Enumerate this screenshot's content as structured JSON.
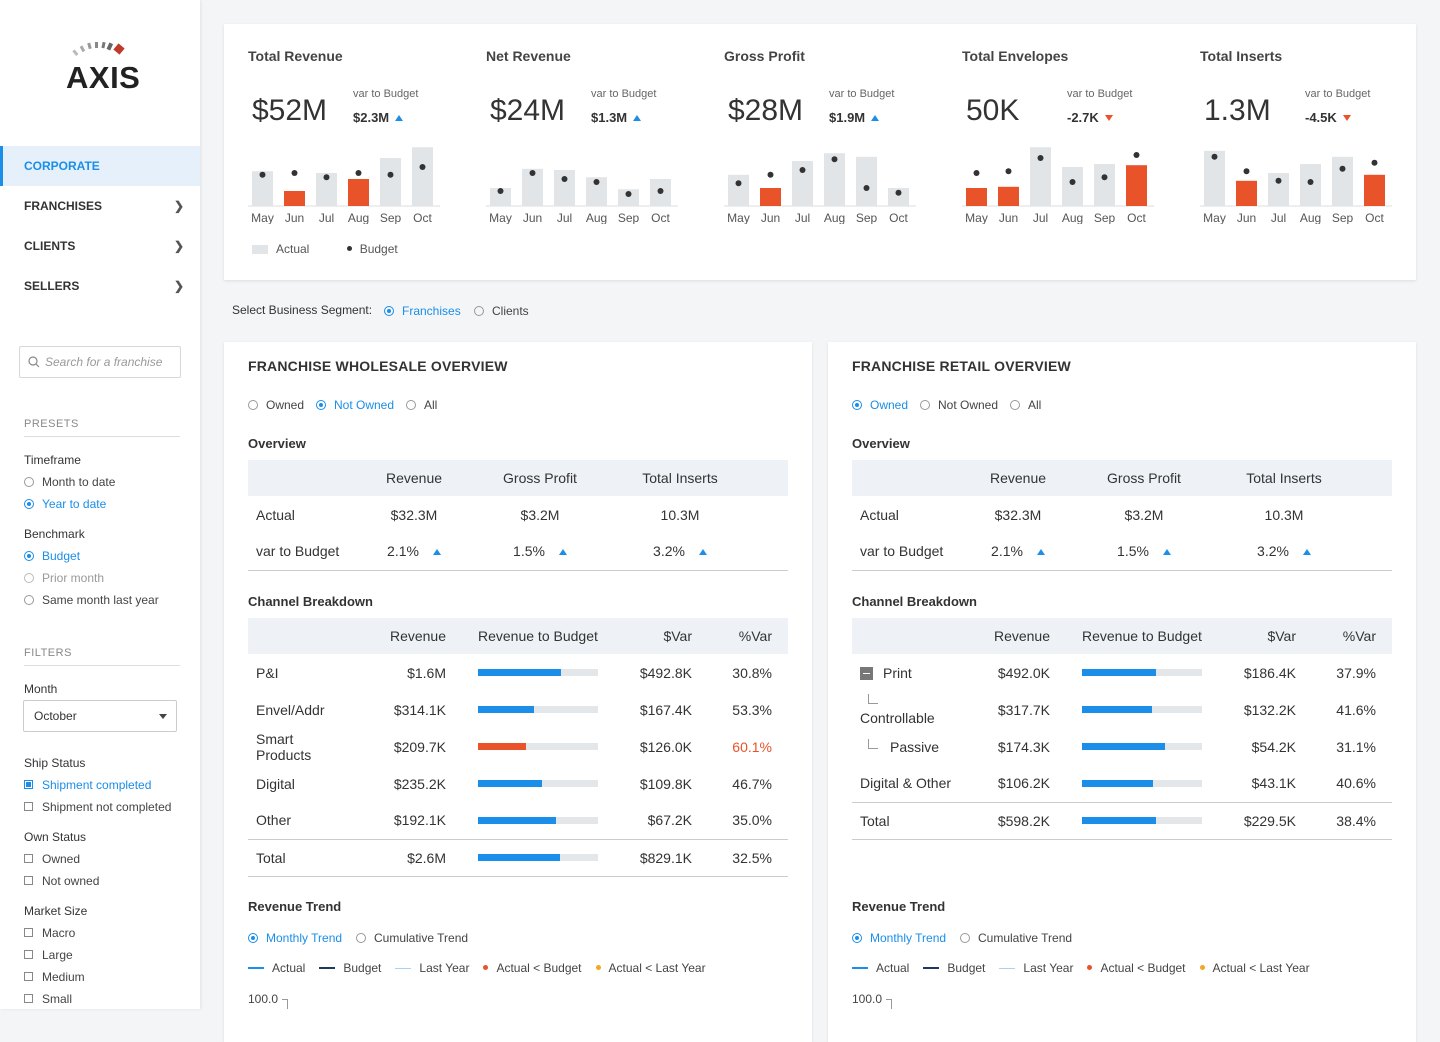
{
  "sidebar": {
    "logo_text": "AXIS",
    "nav": [
      {
        "label": "CORPORATE",
        "active": true
      },
      {
        "label": "FRANCHISES"
      },
      {
        "label": "CLIENTS"
      },
      {
        "label": "SELLERS"
      }
    ],
    "search_placeholder": "Search for a franchise",
    "presets_header": "PRESETS",
    "timeframe_label": "Timeframe",
    "timeframe_options": [
      "Month to date",
      "Year to date"
    ],
    "timeframe_selected": "Year to date",
    "benchmark_label": "Benchmark",
    "benchmark_options": [
      "Budget",
      "Prior month",
      "Same month last year"
    ],
    "benchmark_selected": "Budget",
    "filters_header": "FILTERS",
    "month_label": "Month",
    "month_value": "October",
    "ship_status_label": "Ship Status",
    "ship_options": [
      "Shipment completed",
      "Shipment not completed"
    ],
    "own_status_label": "Own Status",
    "own_options": [
      "Owned",
      "Not owned"
    ],
    "market_size_label": "Market Size",
    "market_options": [
      "Macro",
      "Large",
      "Medium",
      "Small"
    ]
  },
  "kpis": [
    {
      "title": "Total Revenue",
      "value": "$52M",
      "var_label": "var to Budget",
      "var_value": "$2.3M",
      "dir": "up",
      "months": [
        "May",
        "Jun",
        "Jul",
        "Aug",
        "Sep",
        "Oct"
      ],
      "actual": [
        0.58,
        0.25,
        0.55,
        0.45,
        0.8,
        0.98
      ],
      "budget": [
        0.52,
        0.55,
        0.48,
        0.55,
        0.52,
        0.65
      ],
      "over": [
        false,
        true,
        false,
        true,
        false,
        false
      ]
    },
    {
      "title": "Net Revenue",
      "value": "$24M",
      "var_label": "var to Budget",
      "var_value": "$1.3M",
      "dir": "up",
      "months": [
        "May",
        "Jun",
        "Jul",
        "Aug",
        "Sep",
        "Oct"
      ],
      "actual": [
        0.3,
        0.62,
        0.6,
        0.48,
        0.28,
        0.45
      ],
      "budget": [
        0.25,
        0.55,
        0.45,
        0.4,
        0.2,
        0.25
      ],
      "over": [
        false,
        false,
        false,
        false,
        false,
        false
      ]
    },
    {
      "title": "Gross Profit",
      "value": "$28M",
      "var_label": "var to Budget",
      "var_value": "$1.9M",
      "dir": "up",
      "months": [
        "May",
        "Jun",
        "Jul",
        "Aug",
        "Sep",
        "Oct"
      ],
      "actual": [
        0.52,
        0.3,
        0.75,
        0.88,
        0.82,
        0.3
      ],
      "budget": [
        0.38,
        0.52,
        0.6,
        0.78,
        0.3,
        0.22
      ],
      "over": [
        false,
        true,
        false,
        false,
        false,
        false
      ]
    },
    {
      "title": "Total Envelopes",
      "value": "50K",
      "var_label": "var to Budget",
      "var_value": "-2.7K",
      "dir": "down",
      "months": [
        "May",
        "Jun",
        "Jul",
        "Aug",
        "Sep",
        "Oct"
      ],
      "actual": [
        0.3,
        0.32,
        0.98,
        0.65,
        0.7,
        0.68
      ],
      "budget": [
        0.55,
        0.58,
        0.8,
        0.4,
        0.48,
        0.85
      ],
      "over": [
        true,
        true,
        false,
        false,
        false,
        true
      ]
    },
    {
      "title": "Total Inserts",
      "value": "1.3M",
      "var_label": "var to Budget",
      "var_value": "-4.5K",
      "dir": "down",
      "months": [
        "May",
        "Jun",
        "Jul",
        "Aug",
        "Sep",
        "Oct"
      ],
      "actual": [
        0.92,
        0.42,
        0.55,
        0.7,
        0.82,
        0.52
      ],
      "budget": [
        0.82,
        0.58,
        0.42,
        0.4,
        0.62,
        0.72
      ],
      "over": [
        false,
        true,
        false,
        false,
        false,
        true
      ]
    }
  ],
  "kpi_legend": {
    "actual": "Actual",
    "budget": "Budget"
  },
  "segment": {
    "label": "Select Business Segment:",
    "options": [
      "Franchises",
      "Clients"
    ],
    "selected": "Franchises"
  },
  "panels": [
    {
      "title": "FRANCHISE WHOLESALE OVERVIEW",
      "own_options": [
        "Owned",
        "Not Owned",
        "All"
      ],
      "own_selected": "Not Owned",
      "overview_label": "Overview",
      "overview_headers": [
        "",
        "Revenue",
        "Gross Profit",
        "Total Inserts"
      ],
      "overview_rows": [
        [
          "Actual",
          "$32.3M",
          "$3.2M",
          "10.3M"
        ],
        [
          "var to Budget",
          "2.1%",
          "1.5%",
          "3.2%"
        ]
      ],
      "channel_label": "Channel Breakdown",
      "channel_headers": [
        "",
        "Revenue",
        "Revenue to Budget",
        "$Var",
        "%Var"
      ],
      "channel_rows": [
        {
          "name": "P&I",
          "revenue": "$1.6M",
          "pct": 0.69,
          "var": "$492.8K",
          "pvar": "30.8%",
          "warn": false
        },
        {
          "name": "Envel/Addr",
          "revenue": "$314.1K",
          "pct": 0.47,
          "var": "$167.4K",
          "pvar": "53.3%",
          "warn": false
        },
        {
          "name": "Smart Products",
          "revenue": "$209.7K",
          "pct": 0.4,
          "var": "$126.0K",
          "pvar": "60.1%",
          "warn": true
        },
        {
          "name": "Digital",
          "revenue": "$235.2K",
          "pct": 0.53,
          "var": "$109.8K",
          "pvar": "46.7%",
          "warn": false
        },
        {
          "name": "Other",
          "revenue": "$192.1K",
          "pct": 0.65,
          "var": "$67.2K",
          "pvar": "35.0%",
          "warn": false
        },
        {
          "name": "Total",
          "revenue": "$2.6M",
          "pct": 0.68,
          "var": "$829.1K",
          "pvar": "32.5%",
          "warn": false
        }
      ],
      "trend_label": "Revenue Trend",
      "trend_options": [
        "Monthly Trend",
        "Cumulative Trend"
      ],
      "trend_selected": "Monthly Trend",
      "trend_legend": [
        "Actual",
        "Budget",
        "Last Year",
        "Actual < Budget",
        "Actual < Last Year"
      ],
      "axis_top": "100.0"
    },
    {
      "title": "FRANCHISE RETAIL OVERVIEW",
      "own_options": [
        "Owned",
        "Not Owned",
        "All"
      ],
      "own_selected": "Owned",
      "overview_label": "Overview",
      "overview_headers": [
        "",
        "Revenue",
        "Gross Profit",
        "Total Inserts"
      ],
      "overview_rows": [
        [
          "Actual",
          "$32.3M",
          "$3.2M",
          "10.3M"
        ],
        [
          "var to Budget",
          "2.1%",
          "1.5%",
          "3.2%"
        ]
      ],
      "channel_label": "Channel Breakdown",
      "channel_headers": [
        "",
        "Revenue",
        "Revenue to Budget",
        "$Var",
        "%Var"
      ],
      "channel_rows": [
        {
          "name": "Print",
          "revenue": "$492.0K",
          "pct": 0.62,
          "var": "$186.4K",
          "pvar": "37.9%",
          "warn": false,
          "kind": "parent"
        },
        {
          "name": "Controllable",
          "revenue": "$317.7K",
          "pct": 0.58,
          "var": "$132.2K",
          "pvar": "41.6%",
          "warn": false,
          "kind": "child"
        },
        {
          "name": "Passive",
          "revenue": "$174.3K",
          "pct": 0.69,
          "var": "$54.2K",
          "pvar": "31.1%",
          "warn": false,
          "kind": "child"
        },
        {
          "name": "Digital & Other",
          "revenue": "$106.2K",
          "pct": 0.59,
          "var": "$43.1K",
          "pvar": "40.6%",
          "warn": false
        },
        {
          "name": "Total",
          "revenue": "$598.2K",
          "pct": 0.62,
          "var": "$229.5K",
          "pvar": "38.4%",
          "warn": false
        }
      ],
      "trend_label": "Revenue Trend",
      "trend_options": [
        "Monthly Trend",
        "Cumulative Trend"
      ],
      "trend_selected": "Monthly Trend",
      "trend_legend": [
        "Actual",
        "Budget",
        "Last Year",
        "Actual < Budget",
        "Actual < Last Year"
      ],
      "axis_top": "100.0"
    }
  ],
  "colors": {
    "accent": "#1a8ee8",
    "alert": "#e8532a",
    "bar_gray": "#e2e5e8",
    "dark_navy": "#1f3a5c",
    "light_blue": "#a9d3f5",
    "orange": "#f5a623"
  }
}
